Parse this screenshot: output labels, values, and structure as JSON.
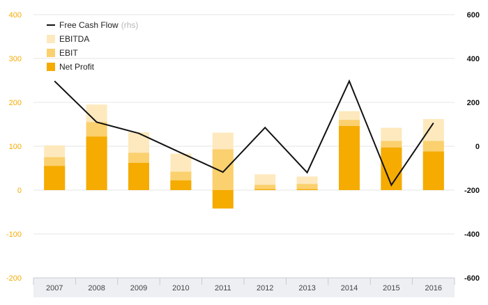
{
  "chart_data": {
    "type": "bar",
    "stacking": "overlap",
    "categories": [
      "2007",
      "2008",
      "2009",
      "2010",
      "2011",
      "2012",
      "2013",
      "2014",
      "2015",
      "2016"
    ],
    "series": [
      {
        "name": "EBITDA",
        "values": [
          102,
          195,
          132,
          83,
          131,
          36,
          31,
          180,
          142,
          162
        ],
        "color": "#fde9bd"
      },
      {
        "name": "EBIT",
        "values": [
          75,
          155,
          85,
          42,
          93,
          12,
          14,
          160,
          112,
          112
        ],
        "color": "#fbd06e"
      },
      {
        "name": "Net Profit",
        "values": [
          55,
          122,
          62,
          22,
          -42,
          2,
          2,
          146,
          97,
          88
        ],
        "color": "#f5ab00"
      }
    ],
    "line_series": {
      "name": "Free Cash Flow",
      "name_suffix": "(rhs)",
      "axis": "right",
      "values": [
        297,
        110,
        59,
        -30,
        -118,
        85,
        -120,
        297,
        -177,
        106
      ],
      "color": "#111111"
    },
    "left_axis": {
      "ylim": [
        -200,
        400
      ],
      "ticks": [
        "400",
        "300",
        "200",
        "100",
        "0",
        "-100",
        "-200"
      ],
      "tick_values": [
        400,
        300,
        200,
        100,
        0,
        -100,
        -200
      ],
      "color": "#f5ab00"
    },
    "right_axis": {
      "ylim": [
        -600,
        600
      ],
      "ticks": [
        "600",
        "400",
        "200",
        "0",
        "-200",
        "-400",
        "-600"
      ],
      "tick_values": [
        600,
        400,
        200,
        0,
        -200,
        -400,
        -600
      ],
      "color": "#111111"
    },
    "legend": {
      "position": "top-left",
      "items": [
        {
          "label": "Free Cash Flow",
          "suffix": "(rhs)",
          "type": "line",
          "color": "#111111"
        },
        {
          "label": "EBITDA",
          "type": "box",
          "color": "#fde9bd"
        },
        {
          "label": "EBIT",
          "type": "box",
          "color": "#fbd06e"
        },
        {
          "label": "Net Profit",
          "type": "box",
          "color": "#f5ab00"
        }
      ]
    },
    "grid": true
  }
}
